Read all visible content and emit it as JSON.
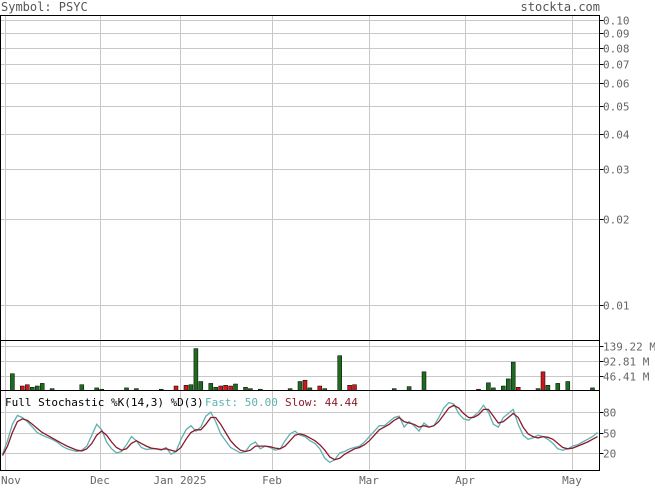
{
  "header": {
    "symbol_label": "Symbol: PSYC",
    "brand": "stockta.com"
  },
  "colors": {
    "grid": "#c8c8c8",
    "frame": "#000000",
    "up_volume": "#1e6b1e",
    "down_volume": "#cc1a1a",
    "fast_line": "#5fb0b0",
    "slow_line": "#8b1a2a",
    "axis_text": "#666666"
  },
  "x_axis": {
    "months": [
      "Nov",
      "Dec",
      "Jan 2025",
      "Feb",
      "Mar",
      "Apr",
      "May"
    ]
  },
  "chart_data": [
    {
      "type": "line",
      "title": "",
      "y_scale": "log",
      "y_ticks": [
        0.1,
        0.09,
        0.08,
        0.07,
        0.06,
        0.05,
        0.04,
        0.03,
        0.02,
        0.01
      ],
      "y_tick_labels": [
        "0.10",
        "0.09",
        "0.08",
        "0.07",
        "0.06",
        "0.05",
        "0.04",
        "0.03",
        "0.02",
        "0.01"
      ],
      "series": []
    },
    {
      "type": "bar",
      "title": "",
      "y_tick_labels": [
        "139.22 M",
        "92.81 M",
        "46.41 M"
      ],
      "y_ticks": [
        139.22,
        92.81,
        46.41
      ],
      "unit": "M",
      "ylim": [
        0,
        155
      ],
      "volumes": [
        {
          "i": 2,
          "v": 52,
          "d": "up"
        },
        {
          "i": 4,
          "v": 14,
          "d": "down"
        },
        {
          "i": 5,
          "v": 18,
          "d": "down"
        },
        {
          "i": 6,
          "v": 10,
          "d": "up"
        },
        {
          "i": 7,
          "v": 14,
          "d": "up"
        },
        {
          "i": 8,
          "v": 22,
          "d": "up"
        },
        {
          "i": 10,
          "v": 6,
          "d": "up"
        },
        {
          "i": 16,
          "v": 18,
          "d": "up"
        },
        {
          "i": 19,
          "v": 8,
          "d": "up"
        },
        {
          "i": 20,
          "v": 4,
          "d": "up"
        },
        {
          "i": 25,
          "v": 8,
          "d": "up"
        },
        {
          "i": 27,
          "v": 6,
          "d": "up"
        },
        {
          "i": 32,
          "v": 4,
          "d": "up"
        },
        {
          "i": 35,
          "v": 14,
          "d": "down"
        },
        {
          "i": 37,
          "v": 16,
          "d": "down"
        },
        {
          "i": 38,
          "v": 18,
          "d": "up"
        },
        {
          "i": 39,
          "v": 130,
          "d": "up"
        },
        {
          "i": 40,
          "v": 28,
          "d": "up"
        },
        {
          "i": 42,
          "v": 22,
          "d": "up"
        },
        {
          "i": 43,
          "v": 10,
          "d": "up"
        },
        {
          "i": 44,
          "v": 14,
          "d": "down"
        },
        {
          "i": 45,
          "v": 16,
          "d": "down"
        },
        {
          "i": 46,
          "v": 14,
          "d": "down"
        },
        {
          "i": 47,
          "v": 20,
          "d": "up"
        },
        {
          "i": 49,
          "v": 10,
          "d": "up"
        },
        {
          "i": 50,
          "v": 6,
          "d": "up"
        },
        {
          "i": 52,
          "v": 4,
          "d": "up"
        },
        {
          "i": 58,
          "v": 6,
          "d": "up"
        },
        {
          "i": 60,
          "v": 28,
          "d": "up"
        },
        {
          "i": 61,
          "v": 32,
          "d": "down"
        },
        {
          "i": 62,
          "v": 8,
          "d": "up"
        },
        {
          "i": 64,
          "v": 14,
          "d": "down"
        },
        {
          "i": 65,
          "v": 6,
          "d": "up"
        },
        {
          "i": 68,
          "v": 108,
          "d": "up"
        },
        {
          "i": 70,
          "v": 16,
          "d": "down"
        },
        {
          "i": 71,
          "v": 18,
          "d": "down"
        },
        {
          "i": 79,
          "v": 6,
          "d": "up"
        },
        {
          "i": 82,
          "v": 12,
          "d": "up"
        },
        {
          "i": 85,
          "v": 58,
          "d": "up"
        },
        {
          "i": 96,
          "v": 4,
          "d": "down"
        },
        {
          "i": 98,
          "v": 24,
          "d": "up"
        },
        {
          "i": 99,
          "v": 8,
          "d": "up"
        },
        {
          "i": 101,
          "v": 14,
          "d": "up"
        },
        {
          "i": 102,
          "v": 36,
          "d": "up"
        },
        {
          "i": 103,
          "v": 88,
          "d": "up"
        },
        {
          "i": 104,
          "v": 10,
          "d": "down"
        },
        {
          "i": 108,
          "v": 6,
          "d": "up"
        },
        {
          "i": 109,
          "v": 58,
          "d": "down"
        },
        {
          "i": 110,
          "v": 16,
          "d": "up"
        },
        {
          "i": 112,
          "v": 22,
          "d": "up"
        },
        {
          "i": 114,
          "v": 28,
          "d": "up"
        },
        {
          "i": 119,
          "v": 8,
          "d": "up"
        }
      ]
    },
    {
      "type": "line",
      "title": "Full Stochastic %K(14,3) %D(3)",
      "fast_label": "Fast: 50.00",
      "slow_label": "Slow: 44.44",
      "ylim": [
        0,
        100
      ],
      "y_ticks": [
        80,
        50,
        20
      ],
      "y_tick_labels": [
        "80",
        "50",
        "20"
      ],
      "series": [
        {
          "name": "Fast",
          "values": [
            18,
            38,
            62,
            75,
            72,
            66,
            58,
            50,
            46,
            43,
            40,
            36,
            30,
            26,
            24,
            22,
            24,
            30,
            46,
            62,
            54,
            36,
            26,
            20,
            22,
            32,
            44,
            38,
            28,
            25,
            26,
            26,
            24,
            28,
            18,
            22,
            40,
            54,
            60,
            52,
            58,
            74,
            80,
            66,
            48,
            38,
            28,
            24,
            20,
            22,
            32,
            36,
            26,
            30,
            28,
            24,
            26,
            38,
            48,
            52,
            46,
            44,
            38,
            34,
            26,
            12,
            6,
            10,
            20,
            22,
            26,
            28,
            30,
            36,
            44,
            52,
            60,
            60,
            66,
            72,
            74,
            58,
            66,
            60,
            52,
            64,
            58,
            60,
            72,
            86,
            94,
            92,
            78,
            70,
            68,
            74,
            80,
            90,
            80,
            62,
            58,
            72,
            78,
            84,
            62,
            46,
            40,
            42,
            46,
            44,
            40,
            34,
            26,
            24,
            26,
            30,
            32,
            36,
            40,
            44,
            50
          ]
        },
        {
          "name": "Slow",
          "values": [
            16,
            30,
            50,
            66,
            70,
            68,
            62,
            56,
            50,
            46,
            42,
            38,
            34,
            30,
            27,
            24,
            23,
            26,
            34,
            46,
            52,
            46,
            36,
            28,
            24,
            26,
            34,
            38,
            34,
            30,
            27,
            26,
            25,
            26,
            24,
            22,
            28,
            40,
            50,
            54,
            54,
            62,
            72,
            72,
            62,
            50,
            38,
            30,
            24,
            22,
            24,
            30,
            30,
            30,
            29,
            27,
            26,
            30,
            38,
            46,
            48,
            46,
            42,
            38,
            32,
            24,
            14,
            10,
            12,
            18,
            22,
            26,
            28,
            32,
            38,
            46,
            54,
            58,
            62,
            68,
            72,
            66,
            64,
            62,
            58,
            60,
            58,
            60,
            66,
            76,
            86,
            90,
            86,
            78,
            72,
            72,
            76,
            84,
            84,
            74,
            64,
            66,
            72,
            78,
            72,
            58,
            48,
            44,
            42,
            44,
            43,
            40,
            34,
            28,
            26,
            27,
            30,
            33,
            36,
            40,
            44
          ]
        }
      ]
    }
  ]
}
